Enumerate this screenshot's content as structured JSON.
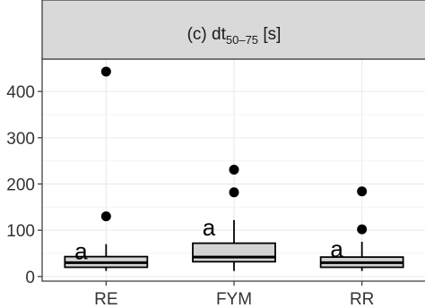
{
  "chart_data": {
    "type": "boxplot",
    "strip": {
      "main": "(c) dt",
      "sub": "50–75",
      "unit": " [s]"
    },
    "categories": [
      "RE",
      "FYM",
      "RR"
    ],
    "boxes": [
      {
        "name": "RE",
        "whisker_low": 12,
        "q1": 20,
        "median": 30,
        "q3": 43,
        "whisker_high": 70,
        "outliers": [
          130,
          443
        ],
        "group_label": "a"
      },
      {
        "name": "FYM",
        "whisker_low": 12,
        "q1": 32,
        "median": 42,
        "q3": 72,
        "whisker_high": 122,
        "outliers": [
          182,
          231
        ],
        "group_label": "a"
      },
      {
        "name": "RR",
        "whisker_low": 12,
        "q1": 20,
        "median": 30,
        "q3": 42,
        "whisker_high": 75,
        "outliers": [
          102,
          184
        ],
        "group_label": "a"
      }
    ],
    "y_ticks": [
      0,
      100,
      200,
      300,
      400
    ],
    "y_tick_labels": [
      "0",
      "100",
      "200",
      "300",
      "400"
    ],
    "ylim": [
      -10,
      470
    ],
    "grid": true,
    "colors": {
      "panel_border": "#333333",
      "strip_fill": "#d9d9d9",
      "grid_major": "#ebebeb",
      "grid_minor": "#f4f4f4",
      "box_fill": "#d3d3d3",
      "outlier": "#000000"
    }
  }
}
